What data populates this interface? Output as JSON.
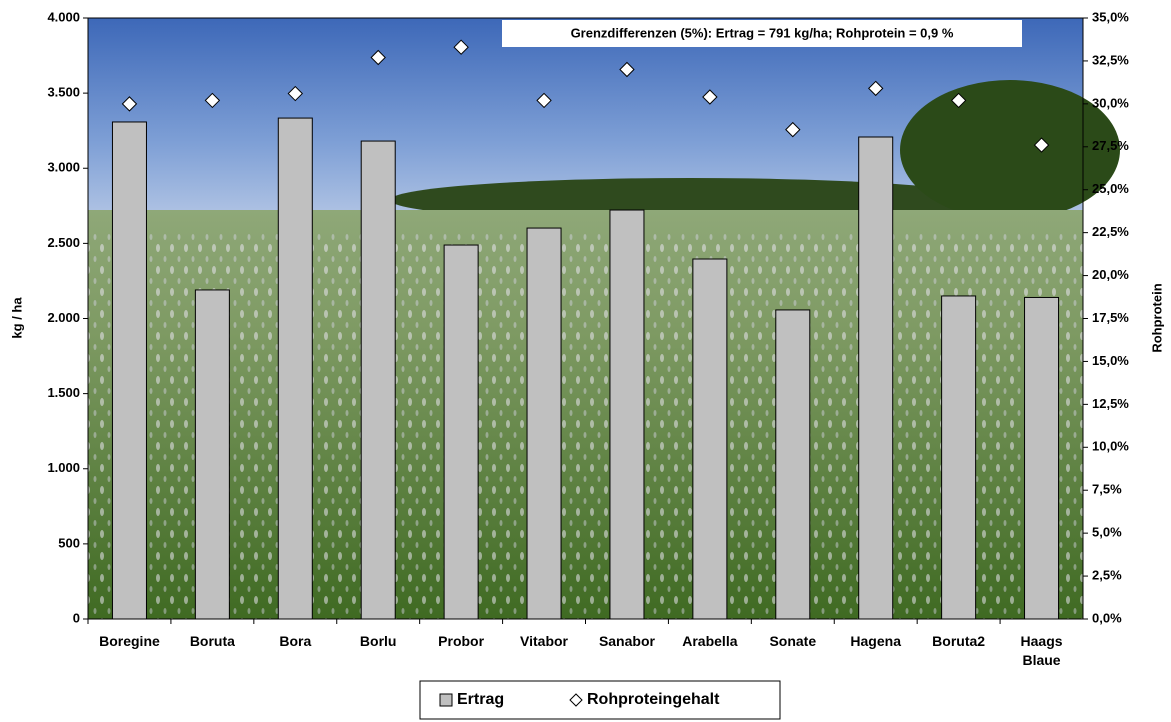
{
  "chart_data": {
    "type": "bar",
    "ylabel": "kg / ha",
    "y2label": "Rohprotein",
    "annotation": "Grenzdifferenzen (5%): Ertrag = 791 kg/ha; Rohprotein = 0,9 %",
    "categories": [
      "Boregine",
      "Boruta",
      "Bora",
      "Borlu",
      "Probor",
      "Vitabor",
      "Sanabor",
      "Arabella",
      "Sonate",
      "Hagena",
      "Boruta2",
      "Haags Blaue"
    ],
    "series": [
      {
        "name": "Ertrag",
        "type": "bar",
        "color": "#c0c0c0",
        "values": [
          3308,
          2190,
          3334,
          3181,
          2489,
          2602,
          2722,
          2396,
          2057,
          3208,
          2150,
          2140
        ]
      },
      {
        "name": "Rohproteingehalt",
        "type": "scatter",
        "marker": "diamond",
        "axis": "y2",
        "color": "#ffffff",
        "values": [
          30.0,
          30.2,
          30.6,
          32.7,
          33.3,
          30.2,
          32.0,
          30.4,
          28.5,
          30.9,
          30.2,
          27.6
        ]
      }
    ],
    "ylim": [
      0,
      4000
    ],
    "yticks": [
      {
        "value": 0,
        "label": "0"
      },
      {
        "value": 500,
        "label": "500"
      },
      {
        "value": 1000,
        "label": "1.000"
      },
      {
        "value": 1500,
        "label": "1.500"
      },
      {
        "value": 2000,
        "label": "2.000"
      },
      {
        "value": 2500,
        "label": "2.500"
      },
      {
        "value": 3000,
        "label": "3.000"
      },
      {
        "value": 3500,
        "label": "3.500"
      },
      {
        "value": 4000,
        "label": "4.000"
      }
    ],
    "y2lim": [
      0,
      35
    ],
    "y2ticks": [
      {
        "value": 0,
        "label": "0,0%"
      },
      {
        "value": 2.5,
        "label": "2,5%"
      },
      {
        "value": 5,
        "label": "5,0%"
      },
      {
        "value": 7.5,
        "label": "7,5%"
      },
      {
        "value": 10,
        "label": "10,0%"
      },
      {
        "value": 12.5,
        "label": "12,5%"
      },
      {
        "value": 15,
        "label": "15,0%"
      },
      {
        "value": 17.5,
        "label": "17,5%"
      },
      {
        "value": 20,
        "label": "20,0%"
      },
      {
        "value": 22.5,
        "label": "22,5%"
      },
      {
        "value": 25,
        "label": "25,0%"
      },
      {
        "value": 27.5,
        "label": "27,5%"
      },
      {
        "value": 30,
        "label": "30,0%"
      },
      {
        "value": 32.5,
        "label": "32,5%"
      },
      {
        "value": 35,
        "label": "35,0%"
      }
    ],
    "grid": false,
    "legend": "bottom"
  }
}
